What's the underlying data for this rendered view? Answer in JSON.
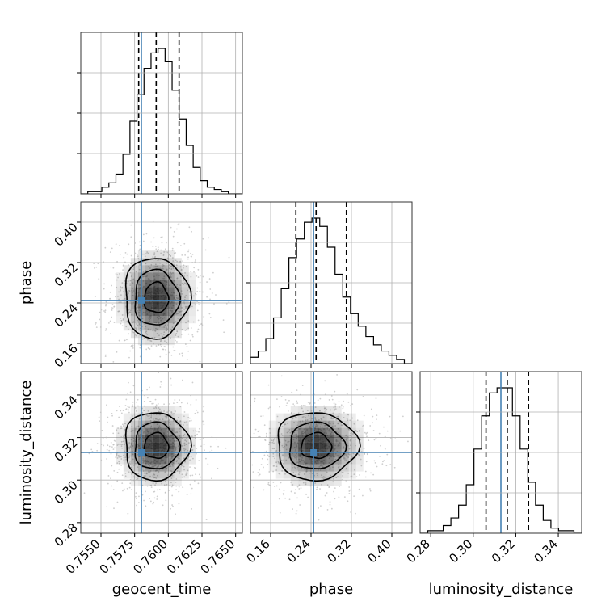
{
  "chart_data": {
    "type": "corner",
    "parameters": [
      "geocent_time",
      "phase",
      "luminosity_distance"
    ],
    "xlabels": [
      "geocent_time",
      "phase",
      "luminosity_distance"
    ],
    "ylabels": [
      "",
      "phase",
      "luminosity_distance"
    ],
    "ranges": [
      [
        0.7535,
        0.7655
      ],
      [
        0.12,
        0.44
      ],
      [
        0.275,
        0.351
      ]
    ],
    "x_ticks": [
      [
        "0.7550",
        "0.7575",
        "0.7600",
        "0.7625",
        "0.7650"
      ],
      [
        "0.16",
        "0.24",
        "0.32",
        "0.40"
      ],
      [
        "0.28",
        "0.30",
        "0.32",
        "0.34"
      ]
    ],
    "y_ticks": {
      "phase": [
        "0.16",
        "0.24",
        "0.32",
        "0.40"
      ],
      "luminosity_distance": [
        "0.28",
        "0.30",
        "0.32",
        "0.34"
      ]
    },
    "truths": [
      0.758,
      0.245,
      0.313
    ],
    "quantiles": [
      [
        0.7578,
        0.7591,
        0.7608
      ],
      [
        0.21,
        0.25,
        0.31
      ],
      [
        0.306,
        0.316,
        0.326
      ]
    ],
    "histograms": [
      {
        "parameter": "geocent_time",
        "counts": [
          0,
          1,
          1,
          3,
          5,
          9,
          18,
          33,
          45,
          57,
          64,
          66,
          60,
          47,
          34,
          22,
          12,
          6,
          3,
          2,
          1,
          0,
          0
        ]
      },
      {
        "parameter": "phase",
        "counts": [
          3,
          6,
          12,
          22,
          36,
          51,
          60,
          68,
          70,
          66,
          56,
          43,
          32,
          24,
          18,
          13,
          9,
          6,
          4,
          2,
          0
        ]
      },
      {
        "parameter": "luminosity_distance",
        "counts": [
          0,
          1,
          1,
          3,
          6,
          11,
          19,
          33,
          46,
          55,
          57,
          57,
          46,
          33,
          20,
          11,
          5,
          2,
          1,
          1,
          0
        ]
      }
    ],
    "contour_levels": [
      "0.5",
      "1.0",
      "1.5",
      "2.0",
      "sigma"
    ],
    "grid": true,
    "colors": {
      "hist": "#000000",
      "truth": "#4682b4",
      "quantile": "#000000",
      "grid": "#b0b0b0",
      "density": "#000000",
      "scatter": "#bbbbbb"
    }
  }
}
